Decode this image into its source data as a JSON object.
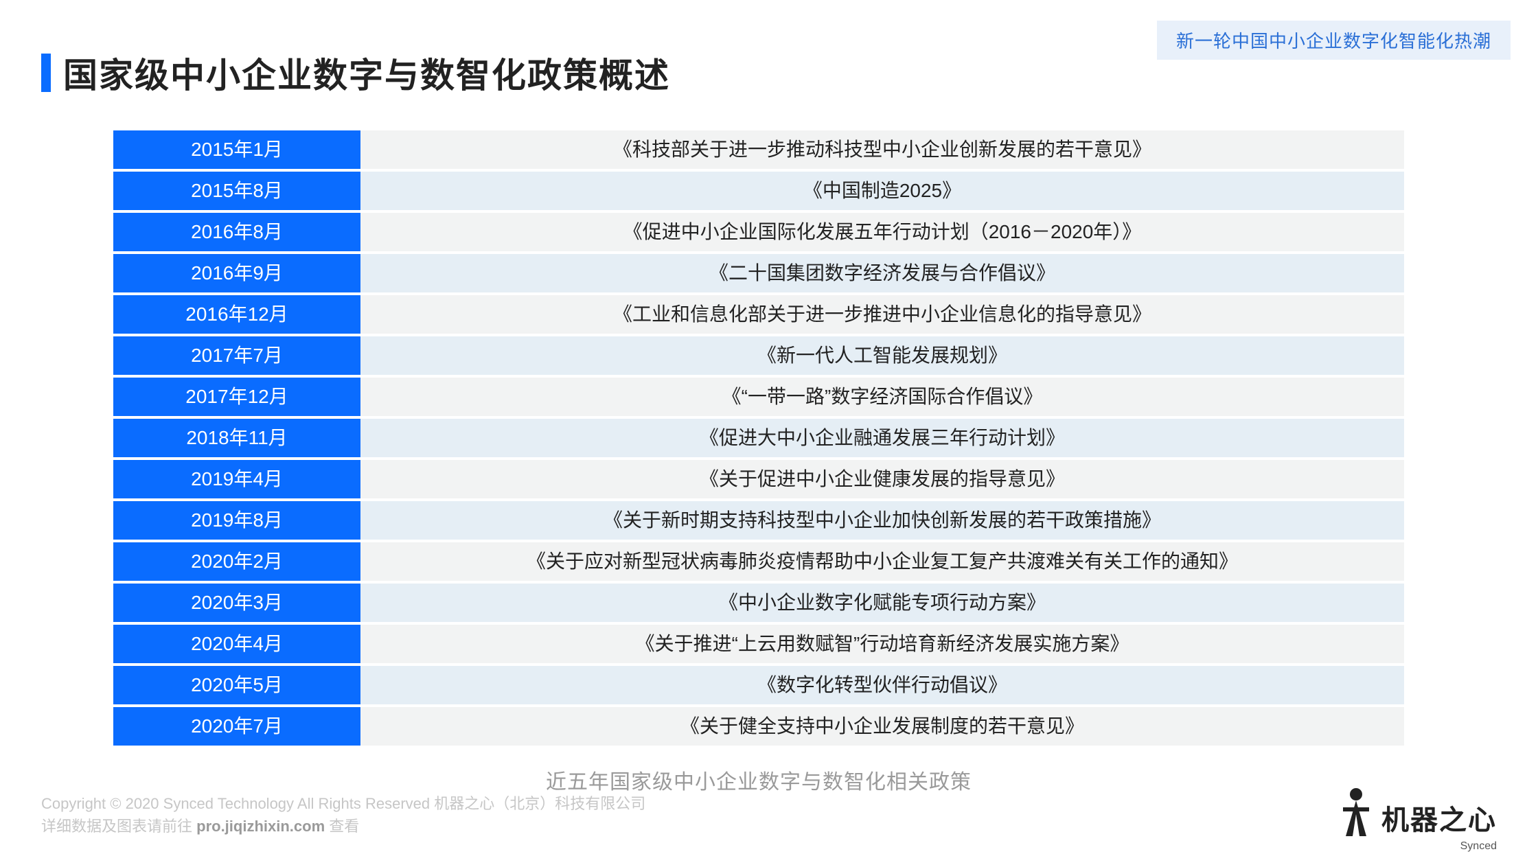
{
  "banner": "新一轮中国中小企业数字化智能化热潮",
  "title": "国家级中小企业数字与数智化政策概述",
  "table": {
    "row_colors": {
      "even": "#f2f3f3",
      "odd": "#e5eef5"
    },
    "date_bg": "#0a6cff",
    "date_color": "#ffffff",
    "rows": [
      {
        "date": "2015年1月",
        "desc": "《科技部关于进一步推动科技型中小企业创新发展的若干意见》"
      },
      {
        "date": "2015年8月",
        "desc": "《中国制造2025》"
      },
      {
        "date": "2016年8月",
        "desc": "《促进中小企业国际化发展五年行动计划（2016－2020年）》"
      },
      {
        "date": "2016年9月",
        "desc": "《二十国集团数字经济发展与合作倡议》"
      },
      {
        "date": "2016年12月",
        "desc": "《工业和信息化部关于进一步推进中小企业信息化的指导意见》"
      },
      {
        "date": "2017年7月",
        "desc": "《新一代人工智能发展规划》"
      },
      {
        "date": "2017年12月",
        "desc": "《“一带一路”数字经济国际合作倡议》"
      },
      {
        "date": "2018年11月",
        "desc": "《促进大中小企业融通发展三年行动计划》"
      },
      {
        "date": "2019年4月",
        "desc": "《关于促进中小企业健康发展的指导意见》"
      },
      {
        "date": "2019年8月",
        "desc": "《关于新时期支持科技型中小企业加快创新发展的若干政策措施》"
      },
      {
        "date": "2020年2月",
        "desc": "《关于应对新型冠状病毒肺炎疫情帮助中小企业复工复产共渡难关有关工作的通知》"
      },
      {
        "date": "2020年3月",
        "desc": "《中小企业数字化赋能专项行动方案》"
      },
      {
        "date": "2020年4月",
        "desc": "《关于推进“上云用数赋智”行动培育新经济发展实施方案》"
      },
      {
        "date": "2020年5月",
        "desc": "《数字化转型伙伴行动倡议》"
      },
      {
        "date": "2020年7月",
        "desc": "《关于健全支持中小企业发展制度的若干意见》"
      }
    ]
  },
  "caption": "近五年国家级中小企业数字与数智化相关政策",
  "footer": {
    "line1": "Copyright © 2020 Synced Technology All Rights Reserved  机器之心（北京）科技有限公司",
    "line2_prefix": "详细数据及图表请前往 ",
    "line2_link": "pro.jiqizhixin.com",
    "line2_suffix": " 查看"
  },
  "logo": {
    "text": "机器之心",
    "sub": "Synced"
  }
}
